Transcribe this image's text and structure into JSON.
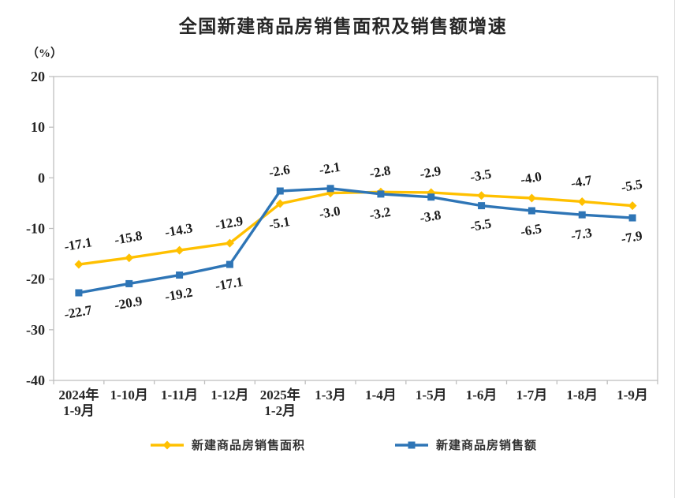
{
  "chart_data": {
    "type": "line",
    "title": "全国新建商品房销售面积及销售额增速",
    "y_unit": "（%）",
    "categories": [
      "2024年\n1-9月",
      "1-10月",
      "1-11月",
      "1-12月",
      "2025年\n1-2月",
      "1-3月",
      "1-4月",
      "1-5月",
      "1-6月",
      "1-7月",
      "1-8月",
      "1-9月"
    ],
    "series": [
      {
        "name": "新建商品房销售面积",
        "color": "#FFC000",
        "marker": "diamond",
        "values": [
          -17.1,
          -15.8,
          -14.3,
          -12.9,
          -5.1,
          -3.0,
          -2.8,
          -2.9,
          -3.5,
          -4.0,
          -4.7,
          -5.5
        ]
      },
      {
        "name": "新建商品房销售额",
        "color": "#2E75B6",
        "marker": "square",
        "values": [
          -22.7,
          -20.9,
          -19.2,
          -17.1,
          -2.6,
          -2.1,
          -3.2,
          -3.8,
          -5.5,
          -6.5,
          -7.3,
          -7.9
        ]
      }
    ],
    "ylim": [
      -40,
      20
    ],
    "ytick_step": 10,
    "grid": false,
    "data_labels": true,
    "legend_position": "bottom",
    "axis_color": "#bfbfbf",
    "label_rotation_deg": -10
  }
}
